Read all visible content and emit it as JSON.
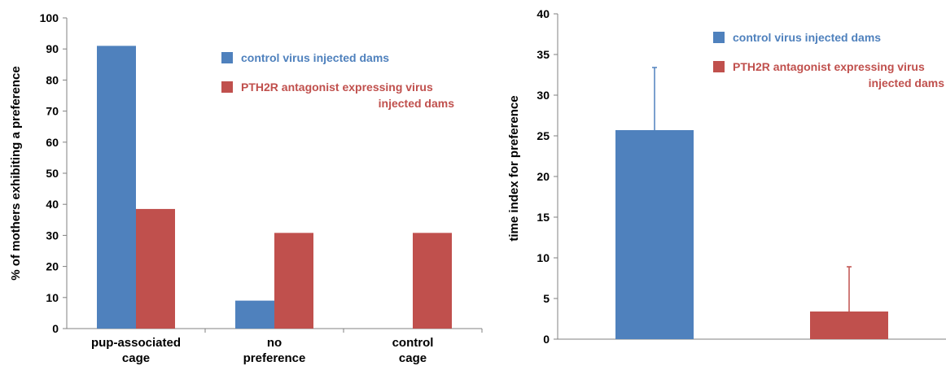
{
  "colors": {
    "control": "#4f81bd",
    "antagonist": "#c0504d",
    "axis": "#808080",
    "text": "#000000"
  },
  "chart_data": [
    {
      "type": "bar",
      "ylabel": "% of mothers exhibiting a preference",
      "ylim": [
        0,
        100
      ],
      "yticks": [
        0,
        10,
        20,
        30,
        40,
        50,
        60,
        70,
        80,
        90,
        100
      ],
      "categories": [
        {
          "lines": [
            "pup-associated",
            "cage"
          ]
        },
        {
          "lines": [
            "no",
            "preference"
          ]
        },
        {
          "lines": [
            "control",
            "cage"
          ]
        }
      ],
      "series": [
        {
          "name": "control virus injected dams",
          "legend_lines": [
            "control virus injected dams"
          ],
          "color": "#4f81bd",
          "values": [
            91,
            9,
            0
          ]
        },
        {
          "name": "PTH2R antagonist expressing virus injected dams",
          "legend_lines": [
            "PTH2R antagonist expressing virus",
            "injected dams"
          ],
          "color": "#c0504d",
          "values": [
            38.5,
            30.8,
            30.8
          ]
        }
      ],
      "legend_position": "top-right",
      "grid": false
    },
    {
      "type": "bar",
      "ylabel": "time index for preference",
      "ylim": [
        0,
        40
      ],
      "yticks": [
        0,
        5,
        10,
        15,
        20,
        25,
        30,
        35,
        40
      ],
      "categories": [
        {
          "lines": []
        }
      ],
      "series": [
        {
          "name": "control virus injected dams",
          "legend_lines": [
            "control virus injected dams"
          ],
          "color": "#4f81bd",
          "values": [
            25.7
          ],
          "error": [
            7.7
          ]
        },
        {
          "name": "PTH2R antagonist expressing virus injected dams",
          "legend_lines": [
            "PTH2R antagonist expressing virus",
            "injected dams"
          ],
          "color": "#c0504d",
          "values": [
            3.4
          ],
          "error": [
            5.5
          ]
        }
      ],
      "legend_position": "top-right",
      "grid": false
    }
  ]
}
